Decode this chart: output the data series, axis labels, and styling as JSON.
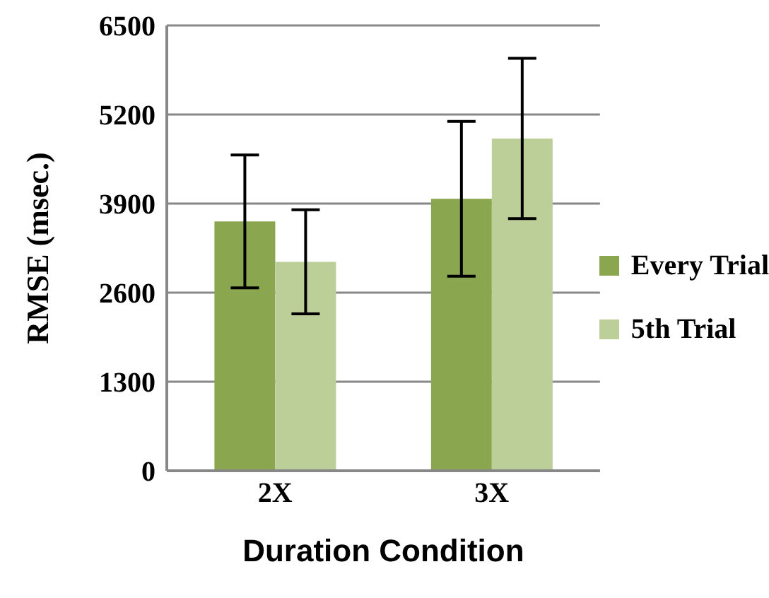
{
  "chart_data": {
    "type": "bar",
    "xlabel": "Duration Condition",
    "ylabel": "RMSE (msec.)",
    "categories": [
      "2X",
      "3X"
    ],
    "series": [
      {
        "name": "Every Trial",
        "color": "#8aa64e",
        "values": [
          3640,
          3970
        ],
        "errors": [
          970,
          1130
        ]
      },
      {
        "name": "5th Trial",
        "color": "#bccf98",
        "values": [
          3050,
          4850
        ],
        "errors": [
          760,
          1170
        ]
      }
    ],
    "ylim": [
      0,
      6500
    ],
    "yticks": [
      0,
      1300,
      2600,
      3900,
      5200,
      6500
    ],
    "grid": "y",
    "legend": "right"
  }
}
